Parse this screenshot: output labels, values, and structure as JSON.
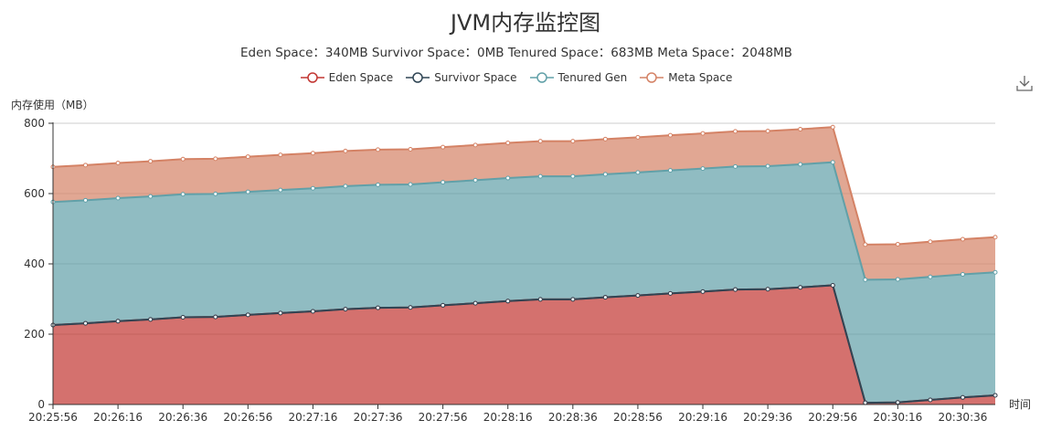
{
  "chart_data": {
    "type": "area",
    "title": "JVM内存监控图",
    "subtitle": "Eden Space：340MB Survivor Space：0MB Tenured Space：683MB Meta Space：2048MB",
    "ylabel": "内存使用（MB）",
    "xlabel": "时间",
    "ylim": [
      0,
      800
    ],
    "yticks": [
      0,
      200,
      400,
      600,
      800
    ],
    "stacked": true,
    "grid": true,
    "legend_position": "top",
    "x": [
      "20:25:56",
      "20:26:06",
      "20:26:16",
      "20:26:26",
      "20:26:36",
      "20:26:46",
      "20:26:56",
      "20:27:06",
      "20:27:16",
      "20:27:26",
      "20:27:36",
      "20:27:46",
      "20:27:56",
      "20:28:06",
      "20:28:16",
      "20:28:26",
      "20:28:36",
      "20:28:46",
      "20:28:56",
      "20:29:06",
      "20:29:16",
      "20:29:26",
      "20:29:36",
      "20:29:46",
      "20:29:56",
      "20:30:06",
      "20:30:16",
      "20:30:26",
      "20:30:36",
      "20:30:46"
    ],
    "x_tick_labels": [
      "20:25:56",
      "20:26:16",
      "20:26:36",
      "20:26:56",
      "20:27:16",
      "20:27:36",
      "20:27:56",
      "20:28:16",
      "20:28:36",
      "20:28:56",
      "20:29:16",
      "20:29:36",
      "20:29:56",
      "20:30:16",
      "20:30:36"
    ],
    "series": [
      {
        "name": "Eden Space",
        "color": "#c23531",
        "values": [
          226,
          231,
          237,
          242,
          248,
          249,
          255,
          260,
          265,
          271,
          275,
          276,
          282,
          288,
          294,
          299,
          299,
          305,
          310,
          316,
          321,
          327,
          328,
          333,
          339,
          5,
          6,
          13,
          20,
          26
        ]
      },
      {
        "name": "Survivor Space",
        "color": "#2f4554",
        "values": [
          0,
          0,
          0,
          0,
          0,
          0,
          0,
          0,
          0,
          0,
          0,
          0,
          0,
          0,
          0,
          0,
          0,
          0,
          0,
          0,
          0,
          0,
          0,
          0,
          0,
          0,
          0,
          0,
          0,
          0
        ]
      },
      {
        "name": "Tenured Gen",
        "color": "#61a0a8",
        "values": [
          350,
          350,
          350,
          350,
          350,
          350,
          350,
          350,
          350,
          350,
          350,
          350,
          350,
          350,
          350,
          350,
          350,
          350,
          350,
          350,
          350,
          350,
          350,
          350,
          350,
          350,
          350,
          350,
          350,
          350
        ]
      },
      {
        "name": "Meta Space",
        "color": "#d48265",
        "values": [
          100,
          100,
          100,
          100,
          100,
          100,
          100,
          100,
          100,
          100,
          100,
          100,
          100,
          100,
          100,
          100,
          100,
          100,
          100,
          100,
          100,
          100,
          100,
          100,
          100,
          100,
          100,
          100,
          100,
          100
        ]
      }
    ]
  },
  "toolbox": {
    "download_icon": "download-icon"
  }
}
